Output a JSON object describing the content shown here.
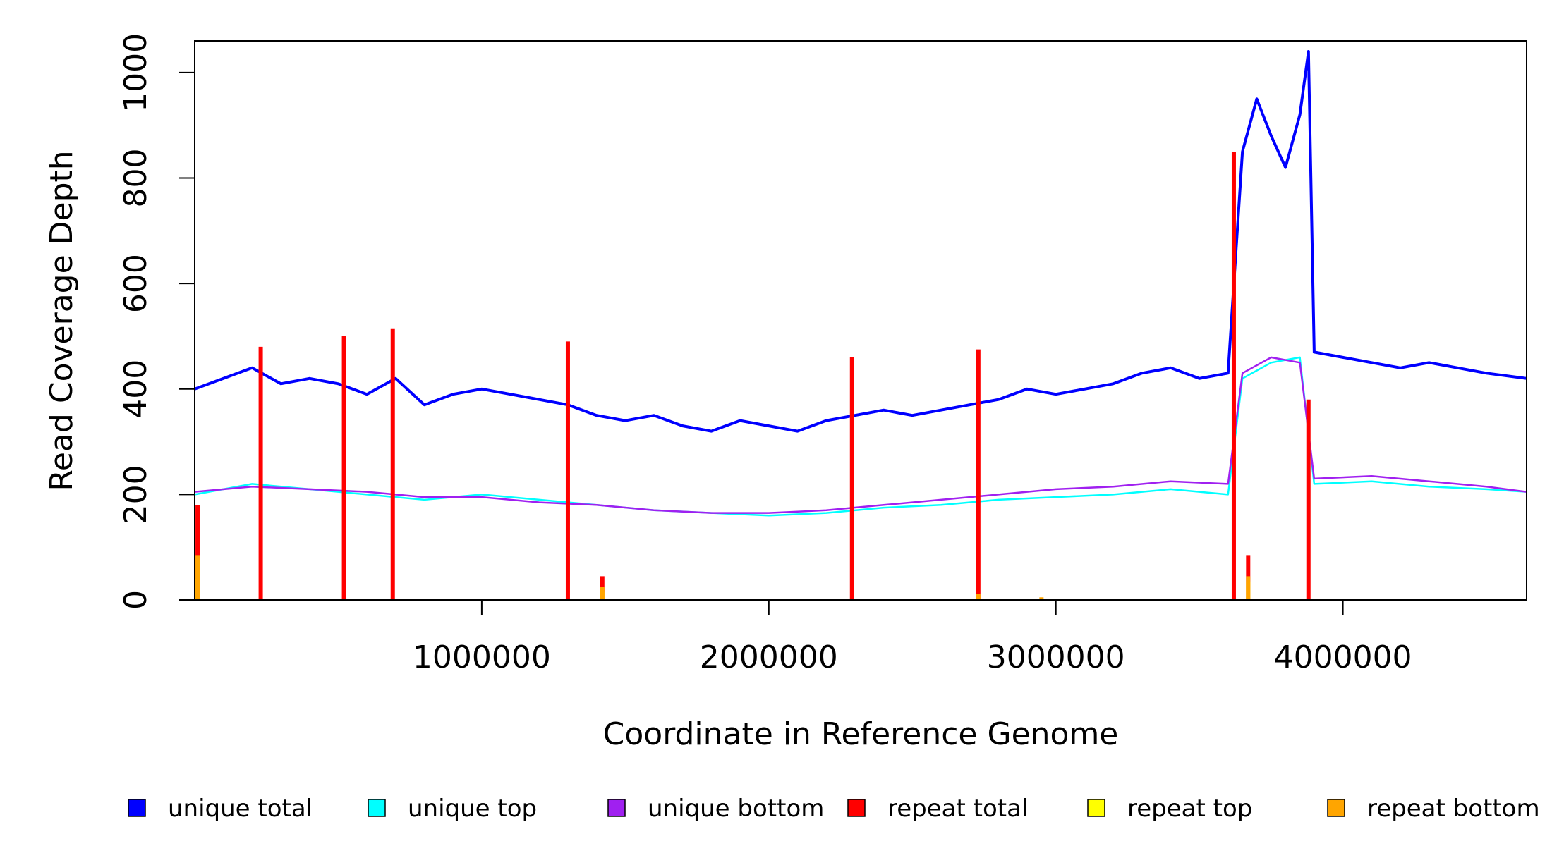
{
  "chart_data": {
    "type": "line",
    "title": "",
    "xlabel": "Coordinate in Reference Genome",
    "ylabel": "Read Coverage Depth",
    "xlim": [
      0,
      4640000
    ],
    "ylim": [
      0,
      1060
    ],
    "x_ticks": [
      1000000,
      2000000,
      3000000,
      4000000
    ],
    "x_tick_labels": [
      "1000000",
      "2000000",
      "3000000",
      "4000000"
    ],
    "y_ticks": [
      0,
      200,
      400,
      600,
      800,
      1000
    ],
    "y_tick_labels": [
      "0",
      "200",
      "400",
      "600",
      "800",
      "1000"
    ],
    "grid": false,
    "legend_position": "bottom",
    "series": [
      {
        "name": "unique total",
        "color": "#0000ff",
        "x": [
          0,
          100000,
          200000,
          300000,
          400000,
          500000,
          600000,
          700000,
          800000,
          900000,
          1000000,
          1100000,
          1200000,
          1300000,
          1400000,
          1500000,
          1600000,
          1700000,
          1800000,
          1900000,
          2000000,
          2100000,
          2200000,
          2300000,
          2400000,
          2500000,
          2600000,
          2700000,
          2800000,
          2900000,
          3000000,
          3100000,
          3200000,
          3300000,
          3400000,
          3500000,
          3600000,
          3650000,
          3700000,
          3750000,
          3800000,
          3850000,
          3880000,
          3900000,
          4000000,
          4100000,
          4200000,
          4300000,
          4400000,
          4500000,
          4640000
        ],
        "values": [
          400,
          420,
          440,
          410,
          420,
          410,
          390,
          420,
          370,
          390,
          400,
          390,
          380,
          370,
          350,
          340,
          350,
          330,
          320,
          340,
          330,
          320,
          340,
          350,
          360,
          350,
          360,
          370,
          380,
          400,
          390,
          400,
          410,
          430,
          440,
          420,
          430,
          850,
          950,
          880,
          820,
          920,
          1040,
          470,
          460,
          450,
          440,
          450,
          440,
          430,
          420
        ]
      },
      {
        "name": "unique top",
        "color": "#00ffff",
        "x": [
          0,
          200000,
          400000,
          600000,
          800000,
          1000000,
          1200000,
          1400000,
          1600000,
          1800000,
          2000000,
          2200000,
          2400000,
          2600000,
          2800000,
          3000000,
          3200000,
          3400000,
          3600000,
          3650000,
          3750000,
          3850000,
          3900000,
          4100000,
          4300000,
          4500000,
          4640000
        ],
        "values": [
          200,
          220,
          210,
          200,
          190,
          200,
          190,
          180,
          170,
          165,
          160,
          165,
          175,
          180,
          190,
          195,
          200,
          210,
          200,
          420,
          450,
          460,
          220,
          225,
          215,
          210,
          205
        ]
      },
      {
        "name": "unique bottom",
        "color": "#a020f0",
        "x": [
          0,
          200000,
          400000,
          600000,
          800000,
          1000000,
          1200000,
          1400000,
          1600000,
          1800000,
          2000000,
          2200000,
          2400000,
          2600000,
          2800000,
          3000000,
          3200000,
          3400000,
          3600000,
          3650000,
          3750000,
          3850000,
          3900000,
          4100000,
          4300000,
          4500000,
          4640000
        ],
        "values": [
          205,
          215,
          210,
          205,
          195,
          195,
          185,
          180,
          170,
          165,
          165,
          170,
          180,
          190,
          200,
          210,
          215,
          225,
          220,
          430,
          460,
          450,
          230,
          235,
          225,
          215,
          205
        ]
      },
      {
        "name": "repeat total",
        "color": "#ff0000",
        "x": [
          10000,
          230000,
          520000,
          690000,
          1300000,
          1420000,
          2290000,
          2730000,
          3620000,
          3670000,
          3880000
        ],
        "values": [
          180,
          480,
          500,
          515,
          490,
          45,
          460,
          475,
          850,
          85,
          380
        ]
      },
      {
        "name": "repeat top",
        "color": "#ffff00",
        "x": [
          10000,
          1420000,
          3670000
        ],
        "values": [
          40,
          15,
          35
        ]
      },
      {
        "name": "repeat bottom",
        "color": "#ffa500",
        "x": [
          10000,
          1420000,
          2730000,
          2950000,
          3670000
        ],
        "values": [
          85,
          25,
          12,
          5,
          45
        ]
      }
    ]
  },
  "legend": [
    {
      "label": "unique total",
      "color": "#0000ff"
    },
    {
      "label": "unique top",
      "color": "#00ffff"
    },
    {
      "label": "unique bottom",
      "color": "#a020f0"
    },
    {
      "label": "repeat total",
      "color": "#ff0000"
    },
    {
      "label": "repeat top",
      "color": "#ffff00"
    },
    {
      "label": "repeat bottom",
      "color": "#ffa500"
    }
  ]
}
